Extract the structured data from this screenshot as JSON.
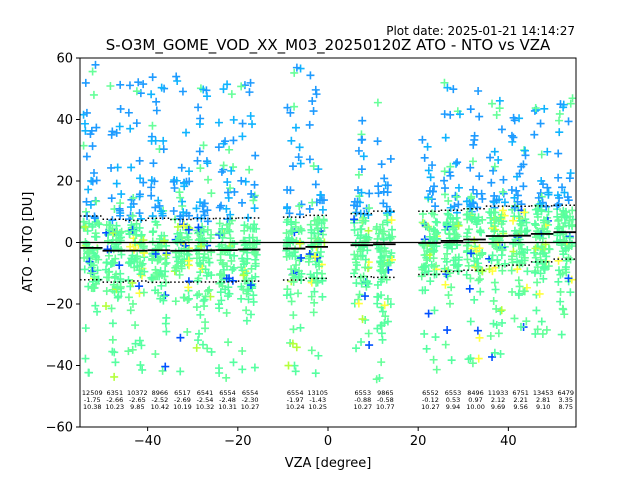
{
  "plot_date": "Plot date: 2025-01-21 14:14:27",
  "colors": {
    "cross_palette": [
      "#1e9bff",
      "#0fb4ff",
      "#55ffa0",
      "#66ff99",
      "#b4ff3c",
      "#ffff3c",
      "#0050ff",
      "#1e50ff"
    ],
    "mean_line": "#000000",
    "std_line": "#000000",
    "zero_line": "#000000"
  },
  "chart_data": {
    "type": "scatter",
    "title": "S-O3M_GOME_VOD_XX_M03_20250120Z ATO - NTO vs VZA",
    "xlabel": "VZA [degree]",
    "ylabel": "ATO - NTO [DU]",
    "xlim": [
      -55,
      55
    ],
    "ylim": [
      -60,
      60
    ],
    "xticks": [
      -40,
      -20,
      0,
      20,
      40
    ],
    "yticks": [
      -60,
      -40,
      -20,
      0,
      20,
      40,
      60
    ],
    "grid": false,
    "zero_line": 0,
    "bins": [
      {
        "x": -52.5,
        "count": "12509",
        "mean": "-1.75",
        "std": "10.38",
        "y_top": 58,
        "y_bottom": -45
      },
      {
        "x": -47.5,
        "count": "6351",
        "mean": "-2.66",
        "std": "10.23",
        "y_top": 57,
        "y_bottom": -44
      },
      {
        "x": -42.5,
        "count": "10372",
        "mean": "-2.65",
        "std": "9.85",
        "y_top": 55,
        "y_bottom": -46
      },
      {
        "x": -37.5,
        "count": "8966",
        "mean": "-2.52",
        "std": "10.42",
        "y_top": 55,
        "y_bottom": -45
      },
      {
        "x": -32.5,
        "count": "6517",
        "mean": "-2.69",
        "std": "10.19",
        "y_top": 56,
        "y_bottom": -44
      },
      {
        "x": -27.5,
        "count": "6541",
        "mean": "-2.54",
        "std": "10.32",
        "y_top": 54,
        "y_bottom": -45
      },
      {
        "x": -22.5,
        "count": "6554",
        "mean": "-2.48",
        "std": "10.31",
        "y_top": 53,
        "y_bottom": -45
      },
      {
        "x": -17.5,
        "count": "6554",
        "mean": "-2.30",
        "std": "10.27",
        "y_top": 56,
        "y_bottom": -44
      },
      {
        "x": -7.5,
        "count": "6554",
        "mean": "-1.97",
        "std": "10.24",
        "y_top": 58,
        "y_bottom": -43
      },
      {
        "x": -2.5,
        "count": "13105",
        "mean": "-1.43",
        "std": "10.25",
        "y_top": 55,
        "y_bottom": -43
      },
      {
        "x": 7.5,
        "count": "6553",
        "mean": "-0.88",
        "std": "10.27",
        "y_top": 41,
        "y_bottom": -43
      },
      {
        "x": 12.5,
        "count": "9865",
        "mean": "-0.58",
        "std": "10.77",
        "y_top": 48,
        "y_bottom": -46
      },
      {
        "x": 22.5,
        "count": "6552",
        "mean": "-0.12",
        "std": "10.27",
        "y_top": 50,
        "y_bottom": -44
      },
      {
        "x": 27.5,
        "count": "6553",
        "mean": "0.53",
        "std": "9.94",
        "y_top": 52,
        "y_bottom": -43
      },
      {
        "x": 32.5,
        "count": "8496",
        "mean": "0.97",
        "std": "10.00",
        "y_top": 50,
        "y_bottom": -42
      },
      {
        "x": 37.5,
        "count": "11933",
        "mean": "2.12",
        "std": "9.69",
        "y_top": 48,
        "y_bottom": -38
      },
      {
        "x": 42.5,
        "count": "6751",
        "mean": "2.21",
        "std": "9.56",
        "y_top": 46,
        "y_bottom": -34
      },
      {
        "x": 47.5,
        "count": "13453",
        "mean": "2.81",
        "std": "9.10",
        "y_top": 50,
        "y_bottom": -32
      },
      {
        "x": 52.5,
        "count": "6479",
        "mean": "3.35",
        "std": "8.75",
        "y_top": 47,
        "y_bottom": -30
      }
    ]
  }
}
